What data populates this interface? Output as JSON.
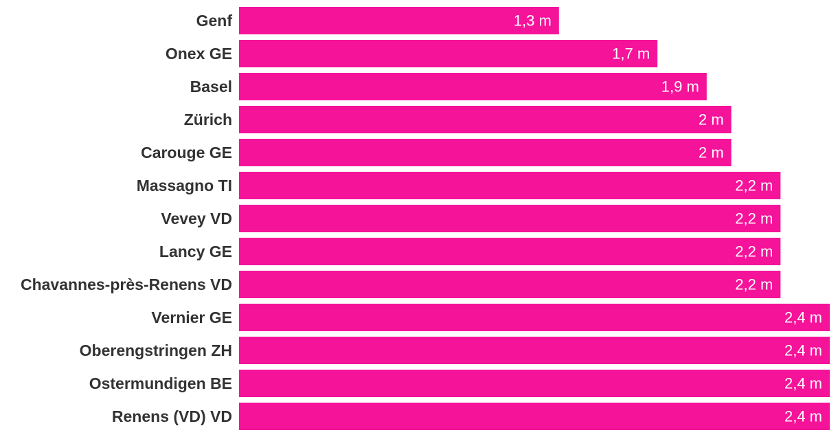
{
  "chart_data": {
    "type": "bar",
    "orientation": "horizontal",
    "title": "",
    "xlabel": "",
    "ylabel": "",
    "unit": "m",
    "categories": [
      "Genf",
      "Onex GE",
      "Basel",
      "Zürich",
      "Carouge GE",
      "Massagno TI",
      "Vevey VD",
      "Lancy GE",
      "Chavannes-près-Renens VD",
      "Vernier GE",
      "Oberengstringen ZH",
      "Ostermundigen BE",
      "Renens (VD) VD"
    ],
    "values": [
      1.3,
      1.7,
      1.9,
      2.0,
      2.0,
      2.2,
      2.2,
      2.2,
      2.2,
      2.4,
      2.4,
      2.4,
      2.4
    ],
    "value_labels": [
      "1,3 m",
      "1,7 m",
      "1,9 m",
      "2 m",
      "2 m",
      "2,2 m",
      "2,2 m",
      "2,2 m",
      "2,2 m",
      "2,4 m",
      "2,4 m",
      "2,4 m",
      "2,4 m"
    ],
    "xlim": [
      0,
      2.4
    ],
    "grid": false,
    "legend": "none",
    "bar_color": "#f5139a"
  }
}
